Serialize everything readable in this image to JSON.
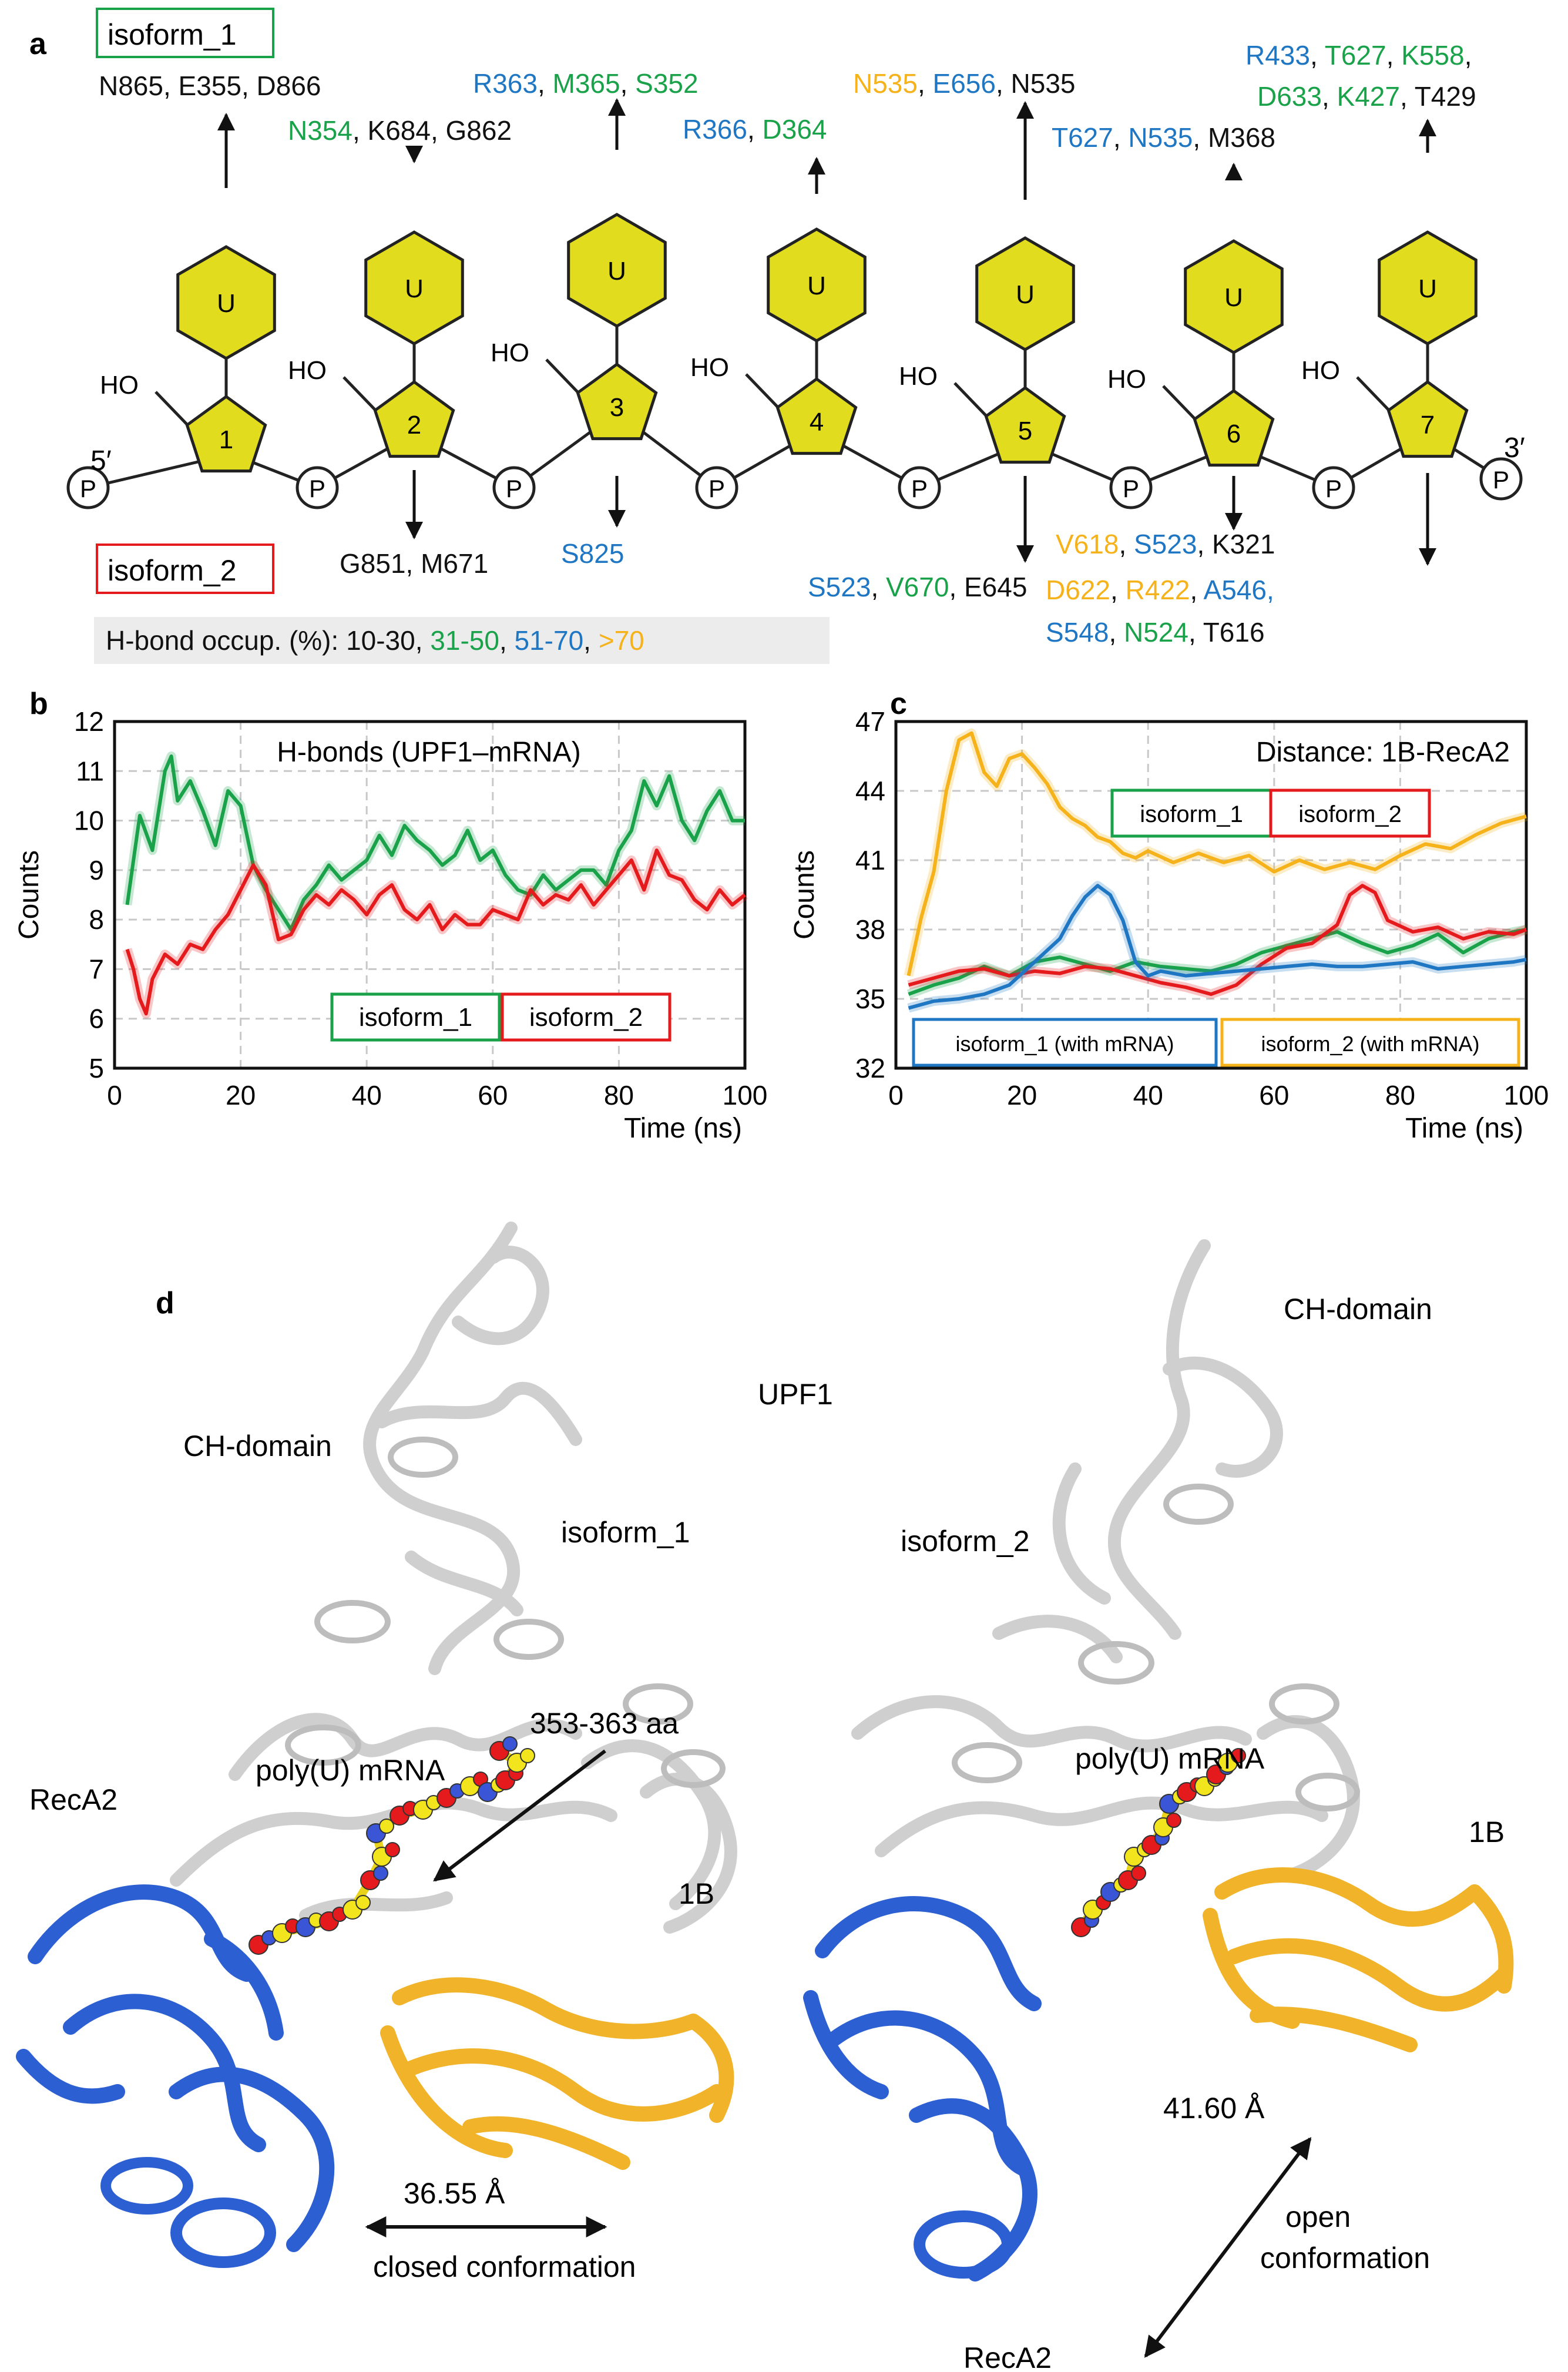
{
  "panels": {
    "a": "a",
    "b": "b",
    "c": "c",
    "d": "d"
  },
  "colors": {
    "black": "#111111",
    "green": "#1aa24a",
    "blue": "#1f77c4",
    "orange": "#f5b21a",
    "red": "#e41a1c",
    "nucleotide": "#e2dc1e",
    "recA2": "#2c5fd1",
    "domain1B": "#f0b329",
    "cartoon": "#d9d9d9"
  },
  "panel_a": {
    "isoform1_box": "isoform_1",
    "isoform2_box": "isoform_2",
    "five_prime": "5′",
    "three_prime": "3′",
    "ho": "HO",
    "base": "U",
    "phosphate": "P",
    "numbers": [
      "1",
      "2",
      "3",
      "4",
      "5",
      "6",
      "7"
    ],
    "legend": {
      "prefix": "H-bond occup. (%): ",
      "c1": "10-30",
      "sep1": ", ",
      "c2": "31-50",
      "sep2": ", ",
      "c3": "51-70",
      "sep3": ", ",
      "c4": ">70"
    },
    "top": {
      "n1": [
        {
          "t": "N865",
          "c": "black"
        },
        {
          "t": ", E355, D866",
          "c": "black"
        }
      ],
      "n2": [
        {
          "t": "N354",
          "c": "green"
        },
        {
          "t": ", K684, G862",
          "c": "black"
        }
      ],
      "n3": [
        {
          "t": "R363",
          "c": "blue"
        },
        {
          "t": ", ",
          "c": "black"
        },
        {
          "t": "M365",
          "c": "green"
        },
        {
          "t": ", ",
          "c": "black"
        },
        {
          "t": "S352",
          "c": "green"
        }
      ],
      "n4": [
        {
          "t": "R366",
          "c": "blue"
        },
        {
          "t": ", ",
          "c": "black"
        },
        {
          "t": "D364",
          "c": "green"
        }
      ],
      "n5": [
        {
          "t": "N535",
          "c": "orange"
        },
        {
          "t": ", ",
          "c": "black"
        },
        {
          "t": "E656",
          "c": "blue"
        },
        {
          "t": ", N535",
          "c": "black"
        }
      ],
      "n6": [
        {
          "t": "T627",
          "c": "blue"
        },
        {
          "t": ", ",
          "c": "black"
        },
        {
          "t": "N535",
          "c": "blue"
        },
        {
          "t": ", M368",
          "c": "black"
        }
      ],
      "n7a": [
        {
          "t": "R433",
          "c": "blue"
        },
        {
          "t": ", ",
          "c": "black"
        },
        {
          "t": "T627",
          "c": "green"
        },
        {
          "t": ", ",
          "c": "black"
        },
        {
          "t": "K558",
          "c": "green"
        },
        {
          "t": ",",
          "c": "black"
        }
      ],
      "n7b": [
        {
          "t": "D633",
          "c": "green"
        },
        {
          "t": ", ",
          "c": "black"
        },
        {
          "t": "K427",
          "c": "green"
        },
        {
          "t": ", T429",
          "c": "black"
        }
      ]
    },
    "bottom": {
      "n2": [
        {
          "t": "G851, M671",
          "c": "black"
        }
      ],
      "n3": [
        {
          "t": "S825",
          "c": "blue"
        }
      ],
      "n5": [
        {
          "t": "S523",
          "c": "blue"
        },
        {
          "t": ", ",
          "c": "black"
        },
        {
          "t": "V670",
          "c": "green"
        },
        {
          "t": ", E645",
          "c": "black"
        }
      ],
      "n6": [
        {
          "t": "V618",
          "c": "orange"
        },
        {
          "t": ", ",
          "c": "black"
        },
        {
          "t": "S523",
          "c": "blue"
        },
        {
          "t": ", K321",
          "c": "black"
        }
      ],
      "n7a": [
        {
          "t": "D622",
          "c": "orange"
        },
        {
          "t": ", ",
          "c": "black"
        },
        {
          "t": "R422",
          "c": "orange"
        },
        {
          "t": ", ",
          "c": "black"
        },
        {
          "t": "A546,",
          "c": "blue"
        }
      ],
      "n7b": [
        {
          "t": "S548",
          "c": "blue"
        },
        {
          "t": ", ",
          "c": "black"
        },
        {
          "t": "N524",
          "c": "green"
        },
        {
          "t": ", T616",
          "c": "black"
        }
      ]
    }
  },
  "chart_data": [
    {
      "type": "line",
      "title": "H-bonds (UPF1–mRNA)",
      "xlabel": "Time (ns)",
      "ylabel": "Counts",
      "xlim": [
        0,
        100
      ],
      "ylim": [
        5,
        12
      ],
      "xticks": [
        "0",
        "20",
        "40",
        "60",
        "80",
        "100"
      ],
      "yticks": [
        "5",
        "6",
        "7",
        "8",
        "9",
        "10",
        "11",
        "12"
      ],
      "grid": true,
      "legend": [
        "isoform_1",
        "isoform_2"
      ],
      "series": [
        {
          "name": "isoform_1",
          "color": "#1aa24a",
          "x": [
            2,
            4,
            6,
            8,
            9,
            10,
            12,
            14,
            16,
            18,
            20,
            22,
            24,
            26,
            28,
            30,
            32,
            34,
            36,
            38,
            40,
            42,
            44,
            46,
            48,
            50,
            52,
            54,
            56,
            58,
            60,
            62,
            64,
            66,
            68,
            70,
            72,
            74,
            76,
            78,
            80,
            82,
            84,
            86,
            88,
            90,
            92,
            94,
            96,
            98,
            100
          ],
          "y": [
            8.3,
            10.1,
            9.4,
            11.0,
            11.3,
            10.4,
            10.8,
            10.2,
            9.5,
            10.6,
            10.3,
            9.1,
            8.6,
            8.2,
            7.8,
            8.4,
            8.7,
            9.1,
            8.8,
            9.0,
            9.2,
            9.7,
            9.3,
            9.9,
            9.6,
            9.4,
            9.1,
            9.3,
            9.8,
            9.2,
            9.4,
            8.9,
            8.6,
            8.5,
            8.9,
            8.6,
            8.8,
            9.0,
            9.0,
            8.7,
            9.4,
            9.8,
            10.8,
            10.3,
            10.9,
            10.0,
            9.6,
            10.2,
            10.6,
            10.0,
            10.0
          ]
        },
        {
          "name": "isoform_2",
          "color": "#e41a1c",
          "x": [
            2,
            3,
            4,
            5,
            6,
            8,
            10,
            12,
            14,
            16,
            18,
            20,
            22,
            24,
            26,
            28,
            30,
            32,
            34,
            36,
            38,
            40,
            42,
            44,
            46,
            48,
            50,
            52,
            54,
            56,
            58,
            60,
            62,
            64,
            66,
            68,
            70,
            72,
            74,
            76,
            78,
            80,
            82,
            84,
            86,
            88,
            90,
            92,
            94,
            96,
            98,
            100
          ],
          "y": [
            7.4,
            7.0,
            6.4,
            6.1,
            6.8,
            7.3,
            7.1,
            7.5,
            7.4,
            7.8,
            8.1,
            8.6,
            9.1,
            8.7,
            7.6,
            7.7,
            8.2,
            8.5,
            8.3,
            8.6,
            8.4,
            8.1,
            8.5,
            8.7,
            8.2,
            8.0,
            8.3,
            7.8,
            8.1,
            7.9,
            7.9,
            8.2,
            8.1,
            8.0,
            8.6,
            8.3,
            8.5,
            8.4,
            8.7,
            8.3,
            8.6,
            8.9,
            9.2,
            8.6,
            9.4,
            8.9,
            8.8,
            8.4,
            8.2,
            8.6,
            8.3,
            8.5
          ]
        }
      ]
    },
    {
      "type": "line",
      "title": "Distance: 1B-RecA2",
      "xlabel": "Time (ns)",
      "ylabel": "Counts",
      "xlim": [
        0,
        100
      ],
      "ylim": [
        32,
        47
      ],
      "xticks": [
        "0",
        "20",
        "40",
        "60",
        "80",
        "100"
      ],
      "yticks": [
        "32",
        "35",
        "38",
        "41",
        "44",
        "47"
      ],
      "grid": true,
      "legend": [
        "isoform_1",
        "isoform_2",
        "isoform_1 (with mRNA)",
        "isoform_2 (with mRNA)"
      ],
      "series": [
        {
          "name": "isoform_1",
          "color": "#1aa24a",
          "x": [
            2,
            6,
            10,
            14,
            18,
            22,
            26,
            30,
            34,
            38,
            42,
            46,
            50,
            54,
            58,
            62,
            66,
            70,
            74,
            78,
            82,
            86,
            90,
            94,
            98,
            100
          ],
          "y": [
            35.2,
            35.6,
            35.9,
            36.4,
            36.0,
            36.6,
            36.8,
            36.5,
            36.2,
            36.6,
            36.4,
            36.3,
            36.2,
            36.5,
            37.0,
            37.3,
            37.6,
            37.9,
            37.4,
            37.0,
            37.3,
            37.8,
            37.0,
            37.6,
            37.9,
            38.0
          ]
        },
        {
          "name": "isoform_2",
          "color": "#e41a1c",
          "x": [
            2,
            6,
            10,
            14,
            18,
            22,
            26,
            30,
            34,
            38,
            42,
            46,
            50,
            54,
            58,
            62,
            66,
            70,
            72,
            74,
            76,
            78,
            82,
            86,
            90,
            94,
            98,
            100
          ],
          "y": [
            35.6,
            35.9,
            36.2,
            36.3,
            36.0,
            36.2,
            36.1,
            36.4,
            36.3,
            36.0,
            35.7,
            35.5,
            35.2,
            35.6,
            36.5,
            37.2,
            37.4,
            38.2,
            39.5,
            39.9,
            39.6,
            38.4,
            37.9,
            38.1,
            37.6,
            37.9,
            37.8,
            38.0
          ]
        },
        {
          "name": "isoform_1 (with mRNA)",
          "color": "#1f77c4",
          "x": [
            2,
            6,
            10,
            14,
            18,
            22,
            26,
            28,
            30,
            32,
            34,
            36,
            38,
            40,
            42,
            46,
            50,
            54,
            58,
            62,
            66,
            70,
            74,
            78,
            82,
            86,
            90,
            94,
            98,
            100
          ],
          "y": [
            34.6,
            34.9,
            35.0,
            35.2,
            35.6,
            36.6,
            37.6,
            38.6,
            39.4,
            39.9,
            39.5,
            38.4,
            36.6,
            36.0,
            36.2,
            36.0,
            36.1,
            36.2,
            36.3,
            36.4,
            36.5,
            36.4,
            36.4,
            36.5,
            36.6,
            36.3,
            36.4,
            36.5,
            36.6,
            36.7
          ]
        },
        {
          "name": "isoform_2 (with mRNA)",
          "color": "#f5b21a",
          "x": [
            2,
            4,
            6,
            8,
            10,
            12,
            14,
            16,
            18,
            20,
            22,
            24,
            26,
            28,
            30,
            32,
            34,
            36,
            38,
            40,
            44,
            48,
            52,
            56,
            60,
            64,
            68,
            72,
            76,
            80,
            84,
            88,
            92,
            96,
            100
          ],
          "y": [
            36.0,
            38.5,
            40.5,
            44.0,
            46.2,
            46.5,
            44.8,
            44.2,
            45.4,
            45.6,
            45.0,
            44.3,
            43.3,
            42.8,
            42.5,
            42.0,
            41.8,
            41.3,
            41.1,
            41.4,
            40.9,
            41.3,
            40.9,
            41.2,
            40.5,
            41.0,
            40.6,
            40.9,
            40.6,
            41.2,
            41.7,
            41.5,
            42.1,
            42.6,
            42.9
          ]
        }
      ]
    }
  ],
  "panel_d": {
    "upf1": "UPF1",
    "left": {
      "ch_domain": "CH-domain",
      "isoform": "isoform_1",
      "mrna": "poly(U) mRNA",
      "region": "353-363 aa",
      "recA2": "RecA2",
      "domain_1b": "1B",
      "distance": "36.55 Å",
      "conformation": "closed conformation"
    },
    "right": {
      "ch_domain": "CH-domain",
      "isoform": "isoform_2",
      "mrna": "poly(U) mRNA",
      "domain_1b": "1B",
      "recA2": "RecA2",
      "distance": "41.60 Å",
      "conformation_line1": "open",
      "conformation_line2": "conformation"
    }
  }
}
